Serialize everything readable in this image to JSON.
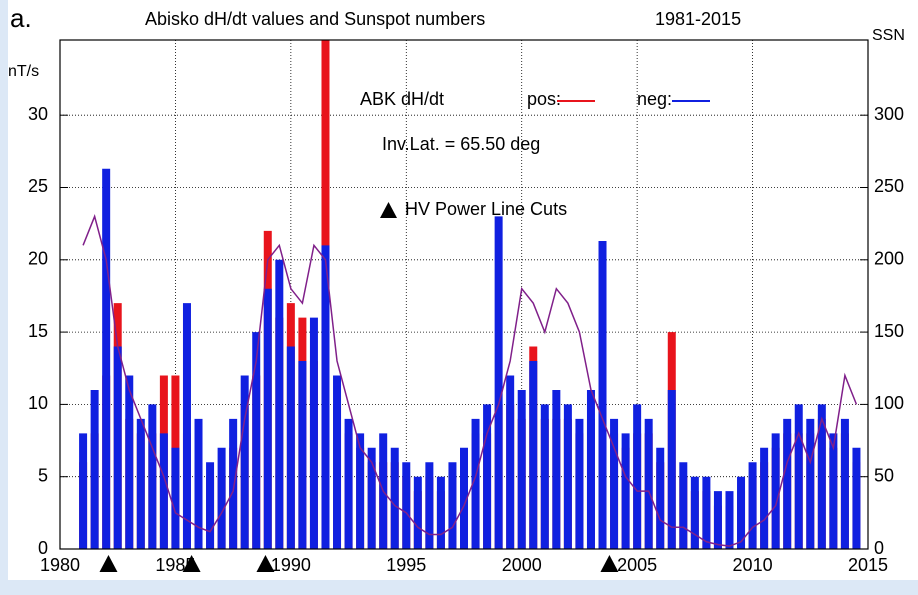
{
  "chart_data": {
    "type": "spikes",
    "panel_label": "a.",
    "title": "Abisko dH/dt values and Sunspot numbers",
    "subtitle": "1981-2015",
    "ylabel": "nT/s",
    "y2label": "SSN",
    "legend_title": "ABK dH/dt",
    "annotation": "Inv.Lat. = 65.50 deg",
    "markers_label": "HV Power Line Cuts",
    "markers_x": [
      1982.1,
      1985.7,
      1988.9,
      2003.8
    ],
    "grid": true,
    "xlim": [
      1980,
      2015
    ],
    "xticks": [
      1980,
      1985,
      1990,
      1995,
      2000,
      2005,
      2010,
      2015
    ],
    "ylim": [
      0,
      35.2
    ],
    "yticks": [
      0,
      5,
      10,
      15,
      20,
      25,
      30
    ],
    "y2lim": [
      0,
      352
    ],
    "y2ticks": [
      0,
      50,
      100,
      150,
      200,
      250,
      300
    ],
    "x": [
      1981.0,
      1981.5,
      1982.0,
      1982.5,
      1983.0,
      1983.5,
      1984.0,
      1984.5,
      1985.0,
      1985.5,
      1986.0,
      1986.5,
      1987.0,
      1987.5,
      1988.0,
      1988.5,
      1989.0,
      1989.5,
      1990.0,
      1990.5,
      1991.0,
      1991.5,
      1992.0,
      1992.5,
      1993.0,
      1993.5,
      1994.0,
      1994.5,
      1995.0,
      1995.5,
      1996.0,
      1996.5,
      1997.0,
      1997.5,
      1998.0,
      1998.5,
      1999.0,
      1999.5,
      2000.0,
      2000.5,
      2001.0,
      2001.5,
      2002.0,
      2002.5,
      2003.0,
      2003.5,
      2004.0,
      2004.5,
      2005.0,
      2005.5,
      2006.0,
      2006.5,
      2007.0,
      2007.5,
      2008.0,
      2008.5,
      2009.0,
      2009.5,
      2010.0,
      2010.5,
      2011.0,
      2011.5,
      2012.0,
      2012.5,
      2013.0,
      2013.5,
      2014.0,
      2014.5
    ],
    "series": [
      {
        "name": "pos:",
        "color": "#e8141c",
        "values": [
          6,
          8,
          12,
          17,
          9,
          8,
          8,
          12,
          12,
          8,
          6,
          5,
          5,
          7,
          10,
          12,
          22,
          16,
          17,
          16,
          13,
          40,
          10,
          8,
          7,
          6,
          6,
          6,
          5,
          4,
          5,
          4,
          5,
          6,
          8,
          8,
          10,
          10,
          9,
          14,
          9,
          9,
          9,
          8,
          9,
          10,
          8,
          7,
          8,
          8,
          6,
          15,
          5,
          4,
          4,
          3,
          3,
          4,
          5,
          6,
          7,
          8,
          8,
          8,
          9,
          7,
          8,
          6
        ]
      },
      {
        "name": "neg:",
        "color": "#1020e0",
        "values": [
          8,
          11,
          26.3,
          14,
          12,
          9,
          10,
          8,
          7,
          17,
          9,
          6,
          7,
          9,
          12,
          15,
          18,
          20,
          14,
          13,
          16,
          21,
          12,
          9,
          8,
          7,
          8,
          7,
          6,
          5,
          6,
          5,
          6,
          7,
          9,
          10,
          23,
          12,
          11,
          13,
          10,
          11,
          10,
          9,
          11,
          21.3,
          9,
          8,
          10,
          9,
          7,
          11,
          6,
          5,
          5,
          4,
          4,
          5,
          6,
          7,
          8,
          9,
          10,
          9,
          10,
          8,
          9,
          7
        ]
      },
      {
        "axis": "y2",
        "color": "#80208a",
        "values": [
          210,
          230,
          200,
          140,
          110,
          90,
          70,
          50,
          25,
          20,
          15,
          12,
          25,
          40,
          90,
          130,
          200,
          210,
          180,
          170,
          210,
          200,
          130,
          100,
          70,
          60,
          40,
          30,
          25,
          15,
          10,
          10,
          15,
          30,
          50,
          80,
          100,
          130,
          180,
          170,
          150,
          180,
          170,
          150,
          110,
          90,
          70,
          50,
          40,
          40,
          20,
          15,
          15,
          10,
          5,
          3,
          2,
          5,
          15,
          20,
          30,
          60,
          80,
          60,
          90,
          70,
          120,
          100
        ]
      }
    ]
  }
}
